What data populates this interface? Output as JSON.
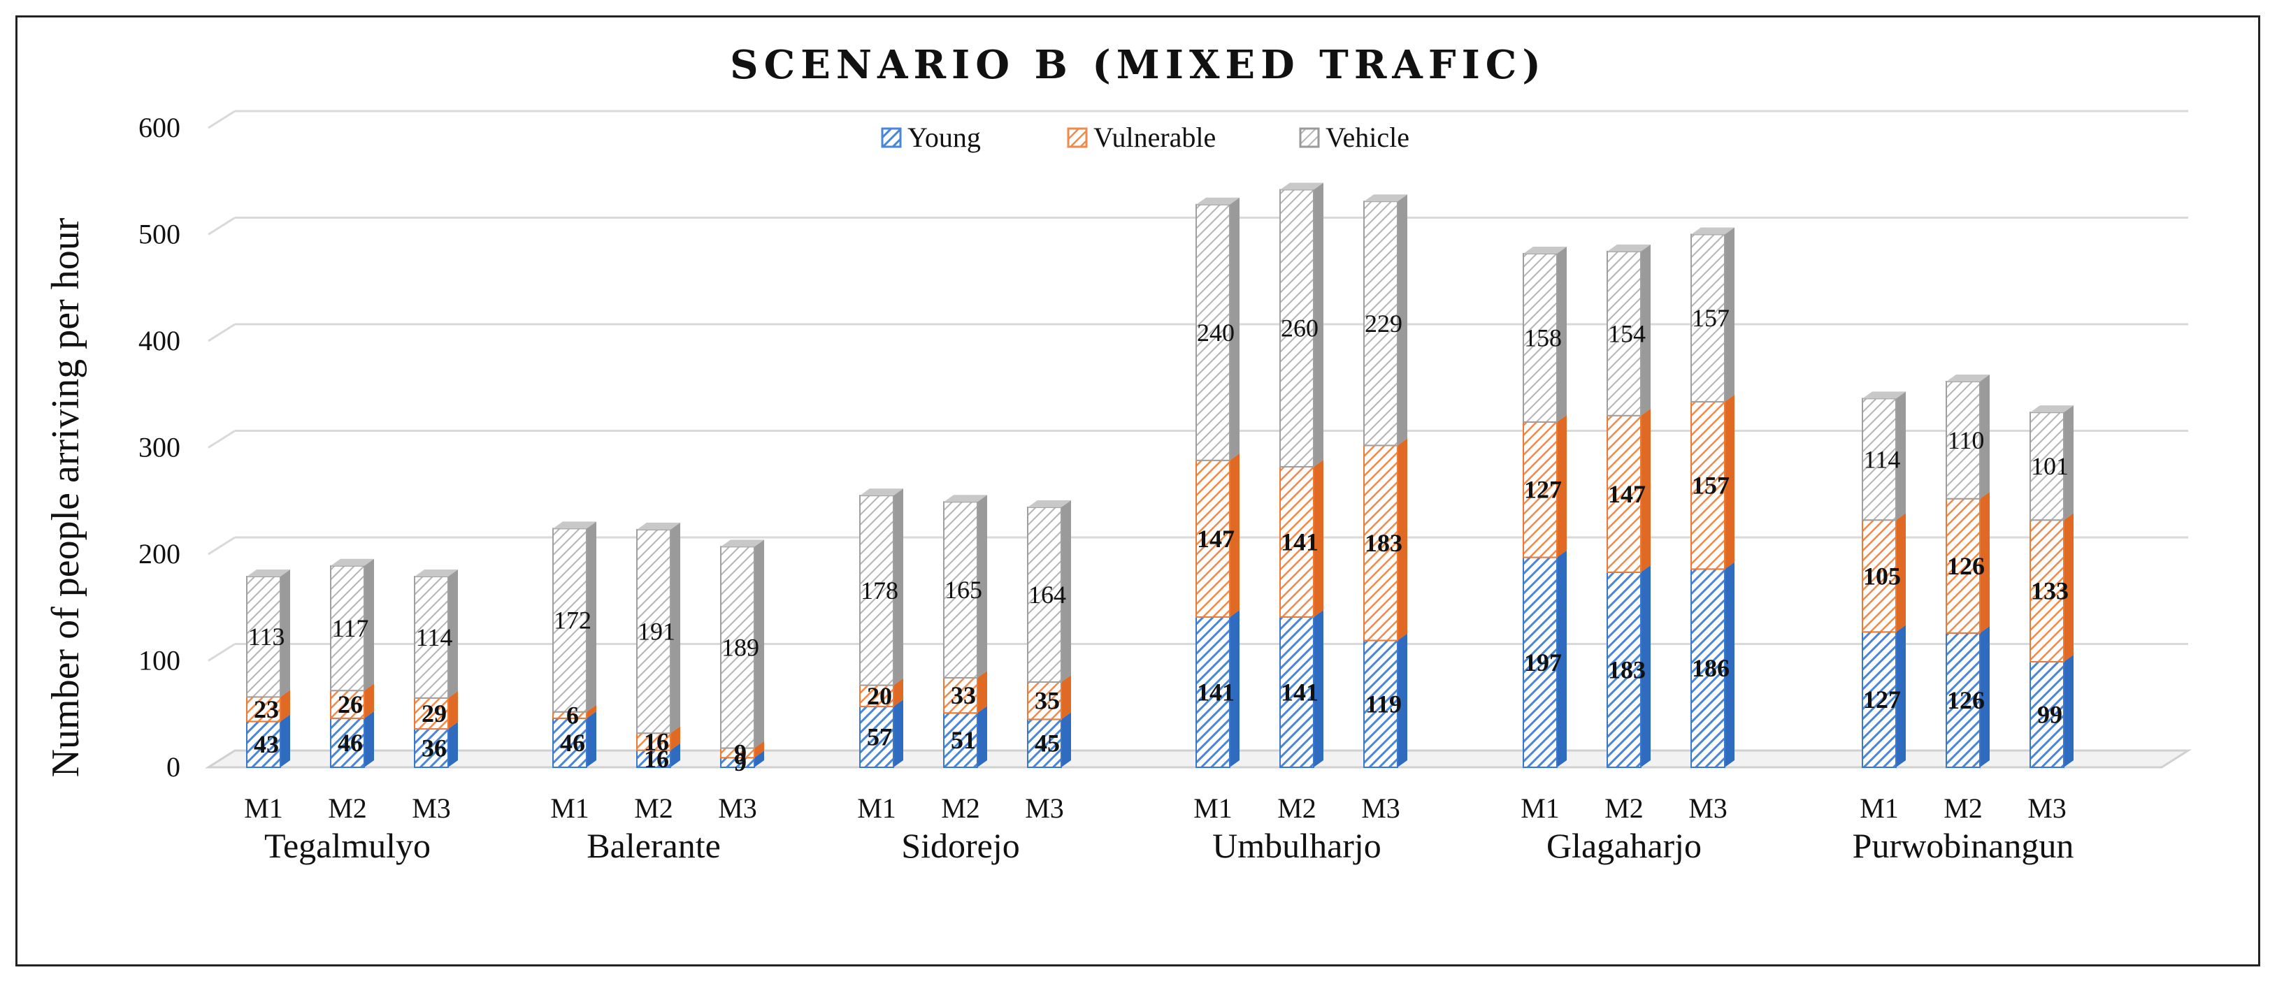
{
  "chart_data": {
    "type": "bar",
    "stacked": true,
    "title": "SCENARIO B (MIXED TRAFIC)",
    "xlabel": "",
    "ylabel": "Number of people arriving per hour",
    "ylim": [
      0,
      600
    ],
    "yticks": [
      0,
      100,
      200,
      300,
      400,
      500,
      600
    ],
    "grid": true,
    "legend_position": "top-center",
    "groups": [
      "Tegalmulyo",
      "Balerante",
      "Sidorejo",
      "Umbulharjo",
      "Glagaharjo",
      "Purwobinangun"
    ],
    "subcategories": [
      "M1",
      "M2",
      "M3"
    ],
    "series": [
      {
        "name": "Young",
        "color": "#4a86d8",
        "values": [
          43,
          46,
          36,
          46,
          16,
          9,
          57,
          51,
          45,
          141,
          141,
          119,
          197,
          183,
          186,
          127,
          126,
          99
        ]
      },
      {
        "name": "Vulnerable",
        "color": "#f08a4b",
        "values": [
          23,
          26,
          29,
          6,
          16,
          9,
          20,
          33,
          35,
          147,
          141,
          183,
          127,
          147,
          157,
          105,
          126,
          133
        ]
      },
      {
        "name": "Vehicle",
        "color": "#a8a8a8",
        "values": [
          113,
          117,
          114,
          172,
          191,
          189,
          178,
          165,
          164,
          240,
          260,
          229,
          158,
          154,
          157,
          114,
          110,
          101
        ]
      }
    ]
  }
}
